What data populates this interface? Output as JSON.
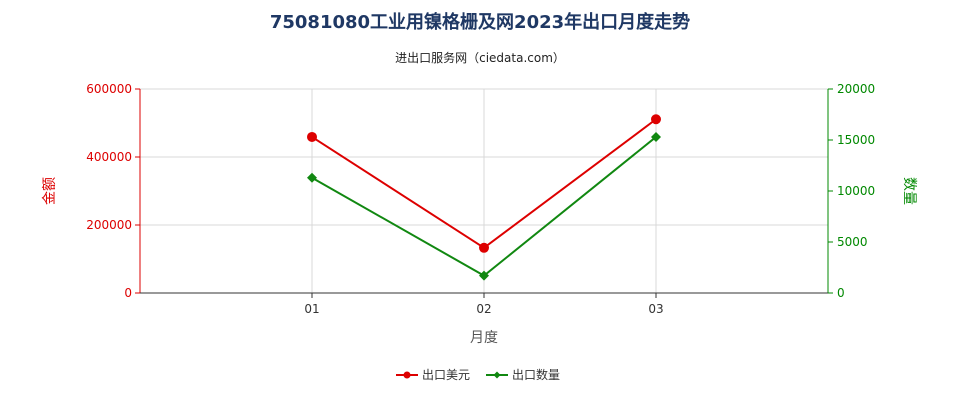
{
  "chart_data": {
    "type": "line",
    "title": "75081080工业用镍格栅及网2023年出口月度走势",
    "subtitle": "进出口服务网（ciedata.com）",
    "xlabel": "月度",
    "ylabel_left": "金额",
    "ylabel_right": "数量",
    "categories": [
      "01",
      "02",
      "03"
    ],
    "y_left": {
      "min": 0,
      "max": 600000,
      "ticks": [
        "0",
        "200000",
        "400000",
        "600000"
      ],
      "color": "#dd0000"
    },
    "y_right": {
      "min": 0,
      "max": 20000,
      "ticks": [
        "0",
        "5000",
        "10000",
        "15000",
        "20000"
      ],
      "color": "#008800"
    },
    "grid": true,
    "legend_position": "bottom",
    "series": [
      {
        "name": "出口美元",
        "axis": "left",
        "color": "#dd0000",
        "marker": "circle",
        "values": [
          459000,
          133000,
          511000
        ]
      },
      {
        "name": "出口数量",
        "axis": "right",
        "color": "#118811",
        "marker": "diamond",
        "values": [
          11300,
          1700,
          15300
        ]
      }
    ]
  }
}
